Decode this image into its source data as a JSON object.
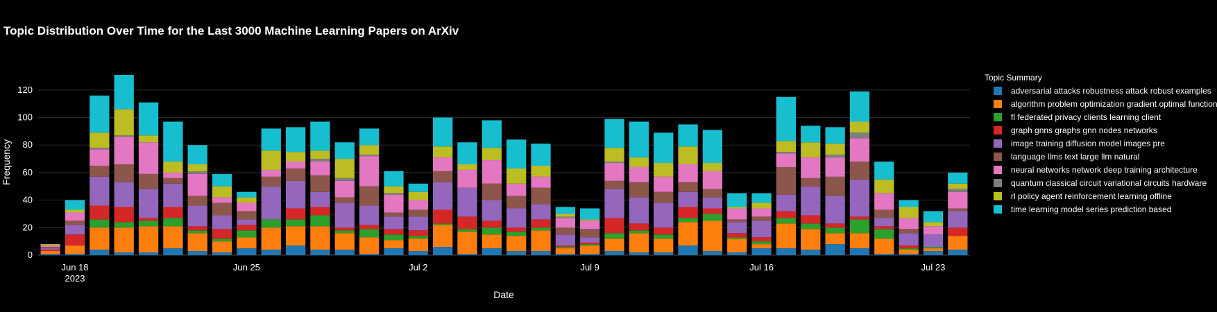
{
  "chart_data": {
    "type": "bar",
    "stacked": true,
    "title": "Topic Distribution Over Time for the Last 3000 Machine Learning Papers on ArXiv",
    "xlabel": "Date",
    "ylabel": "Frequency",
    "legend_title": "Topic Summary",
    "legend_position": "right",
    "ylim": [
      0,
      131
    ],
    "yticks": [
      0,
      20,
      40,
      60,
      80,
      100,
      120
    ],
    "grid": true,
    "x_tick_labels": [
      {
        "date": "2023-06-18",
        "label": "Jun 18",
        "sublabel": "2023"
      },
      {
        "date": "2023-06-25",
        "label": "Jun 25",
        "sublabel": ""
      },
      {
        "date": "2023-07-02",
        "label": "Jul 2",
        "sublabel": ""
      },
      {
        "date": "2023-07-09",
        "label": "Jul 9",
        "sublabel": ""
      },
      {
        "date": "2023-07-16",
        "label": "Jul 16",
        "sublabel": ""
      },
      {
        "date": "2023-07-23",
        "label": "Jul 23",
        "sublabel": ""
      }
    ],
    "x": [
      "2023-06-17",
      "2023-06-18",
      "2023-06-19",
      "2023-06-20",
      "2023-06-21",
      "2023-06-22",
      "2023-06-23",
      "2023-06-24",
      "2023-06-25",
      "2023-06-26",
      "2023-06-27",
      "2023-06-28",
      "2023-06-29",
      "2023-06-30",
      "2023-07-01",
      "2023-07-02",
      "2023-07-03",
      "2023-07-04",
      "2023-07-05",
      "2023-07-06",
      "2023-07-07",
      "2023-07-08",
      "2023-07-09",
      "2023-07-10",
      "2023-07-11",
      "2023-07-12",
      "2023-07-13",
      "2023-07-14",
      "2023-07-15",
      "2023-07-16",
      "2023-07-17",
      "2023-07-18",
      "2023-07-19",
      "2023-07-20",
      "2023-07-21",
      "2023-07-22",
      "2023-07-23",
      "2023-07-24"
    ],
    "series": [
      {
        "name": "adversarial attacks robustness attack robust examples",
        "color": "#1f77b4",
        "values": [
          1,
          1,
          4,
          2,
          2,
          5,
          3,
          2,
          5,
          4,
          7,
          4,
          4,
          1,
          5,
          3,
          6,
          1,
          5,
          3,
          3,
          1,
          1,
          3,
          2,
          2,
          7,
          3,
          2,
          5,
          5,
          4,
          8,
          5,
          1,
          1,
          3,
          4
        ]
      },
      {
        "name": "algorithm problem optimization gradient optimal function",
        "color": "#ff7f0e",
        "values": [
          2,
          6,
          16,
          18,
          19,
          16,
          13,
          8,
          8,
          16,
          14,
          17,
          12,
          12,
          6,
          9,
          16,
          16,
          10,
          11,
          15,
          4,
          6,
          9,
          14,
          10,
          17,
          22,
          10,
          3,
          18,
          15,
          8,
          11,
          11,
          3,
          2,
          10
        ]
      },
      {
        "name": "fl federated privacy clients learning client",
        "color": "#2ca02c",
        "values": [
          0,
          0,
          6,
          4,
          4,
          6,
          2,
          2,
          5,
          6,
          5,
          8,
          2,
          6,
          4,
          2,
          1,
          2,
          5,
          3,
          2,
          1,
          1,
          4,
          2,
          3,
          3,
          5,
          1,
          2,
          4,
          4,
          4,
          10,
          7,
          1,
          1,
          0
        ]
      },
      {
        "name": "graph gnns graphs gnn nodes networks",
        "color": "#d62728",
        "values": [
          1,
          8,
          10,
          11,
          2,
          8,
          3,
          7,
          4,
          0,
          8,
          6,
          2,
          3,
          4,
          4,
          10,
          9,
          5,
          3,
          6,
          1,
          1,
          11,
          5,
          5,
          8,
          4,
          3,
          3,
          5,
          6,
          3,
          2,
          2,
          2,
          0,
          6
        ]
      },
      {
        "name": "image training diffusion model images pre",
        "color": "#9467bd",
        "values": [
          1,
          7,
          21,
          18,
          21,
          17,
          15,
          10,
          4,
          24,
          20,
          11,
          18,
          14,
          9,
          10,
          20,
          21,
          15,
          14,
          11,
          8,
          4,
          21,
          19,
          18,
          11,
          8,
          8,
          12,
          12,
          21,
          20,
          27,
          6,
          9,
          9,
          12
        ]
      },
      {
        "name": "language llms text large llm natural",
        "color": "#8c564b",
        "values": [
          1,
          3,
          8,
          13,
          11,
          4,
          7,
          9,
          6,
          7,
          9,
          12,
          4,
          14,
          3,
          5,
          8,
          0,
          12,
          9,
          12,
          5,
          6,
          6,
          11,
          8,
          7,
          6,
          2,
          3,
          20,
          6,
          14,
          13,
          6,
          3,
          0,
          2
        ]
      },
      {
        "name": "neural networks network deep training architecture",
        "color": "#e377c2",
        "values": [
          1,
          6,
          12,
          20,
          23,
          4,
          16,
          4,
          6,
          5,
          5,
          10,
          12,
          22,
          13,
          7,
          10,
          13,
          17,
          9,
          8,
          7,
          6,
          13,
          11,
          11,
          13,
          13,
          8,
          6,
          10,
          15,
          14,
          17,
          12,
          8,
          6,
          12
        ]
      },
      {
        "name": "quantum classical circuit variational circuits hardware",
        "color": "#7f7f7f",
        "values": [
          0,
          0,
          1,
          1,
          0,
          0,
          2,
          0,
          0,
          0,
          0,
          2,
          2,
          1,
          1,
          0,
          0,
          0,
          0,
          0,
          0,
          1,
          0,
          1,
          0,
          0,
          0,
          0,
          0,
          0,
          1,
          0,
          2,
          4,
          0,
          0,
          0,
          2
        ]
      },
      {
        "name": "rl policy agent reinforcement learning offline",
        "color": "#bcbd22",
        "values": [
          1,
          2,
          11,
          19,
          5,
          8,
          5,
          8,
          4,
          14,
          7,
          6,
          14,
          7,
          5,
          6,
          8,
          4,
          9,
          11,
          8,
          2,
          1,
          10,
          7,
          10,
          13,
          6,
          1,
          4,
          8,
          11,
          8,
          8,
          10,
          8,
          3,
          4
        ]
      },
      {
        "name": "time learning model series prediction based",
        "color": "#17becf",
        "values": [
          0,
          7,
          27,
          25,
          24,
          29,
          14,
          9,
          4,
          16,
          18,
          21,
          12,
          12,
          11,
          6,
          21,
          16,
          20,
          21,
          16,
          5,
          8,
          21,
          26,
          22,
          16,
          24,
          10,
          7,
          32,
          12,
          12,
          22,
          13,
          5,
          8,
          8
        ]
      }
    ]
  }
}
